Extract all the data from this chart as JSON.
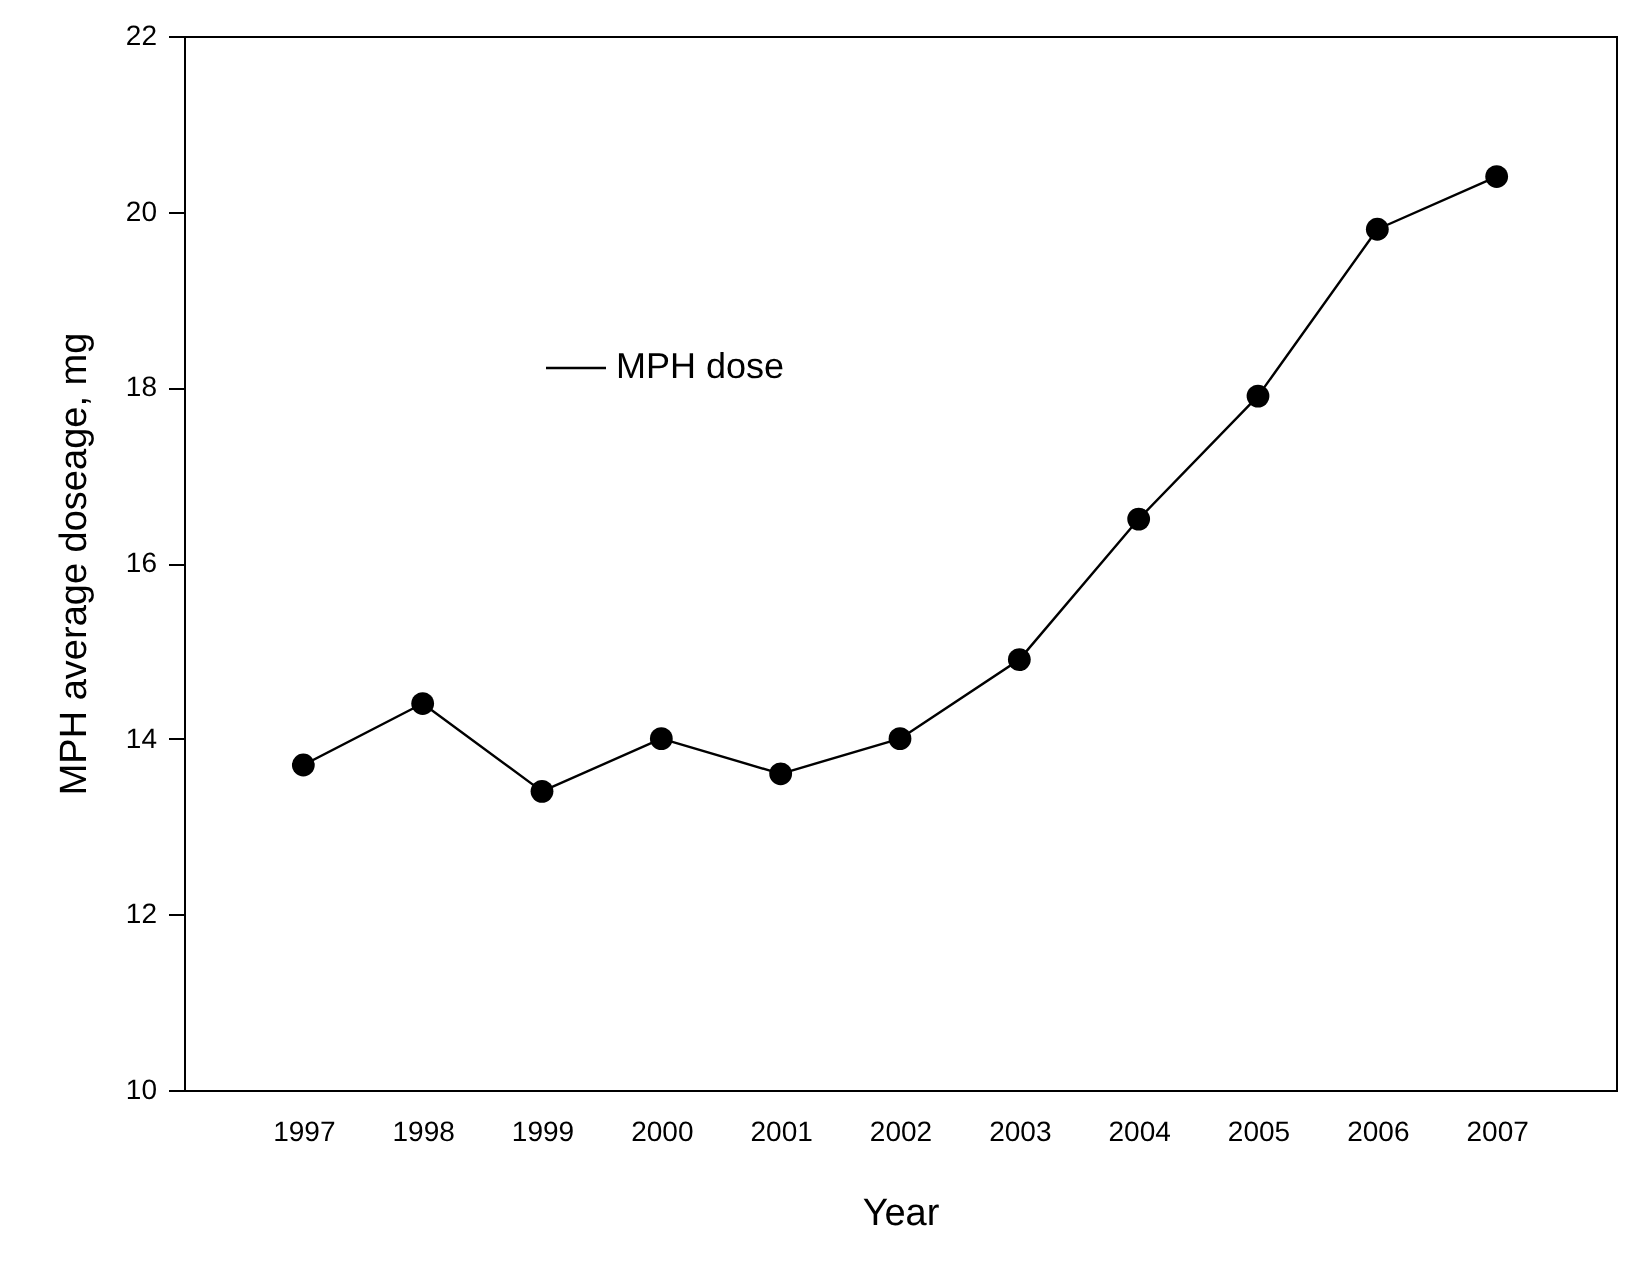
{
  "chart_data": {
    "type": "line",
    "xlabel": "Year",
    "ylabel": "MPH average doseage, mg",
    "categories": [
      "1997",
      "1998",
      "1999",
      "2000",
      "2001",
      "2002",
      "2003",
      "2004",
      "2005",
      "2006",
      "2007"
    ],
    "series": [
      {
        "name": "MPH dose",
        "color": "#000000",
        "values": [
          13.7,
          14.4,
          13.4,
          14.0,
          13.6,
          14.0,
          14.9,
          16.5,
          17.9,
          19.8,
          20.4
        ]
      }
    ],
    "ylim": [
      10,
      22
    ],
    "yticks": [
      10,
      12,
      14,
      16,
      18,
      20,
      22
    ],
    "grid": false,
    "legend": "top left",
    "marker": "circle",
    "line_style": "solid"
  }
}
